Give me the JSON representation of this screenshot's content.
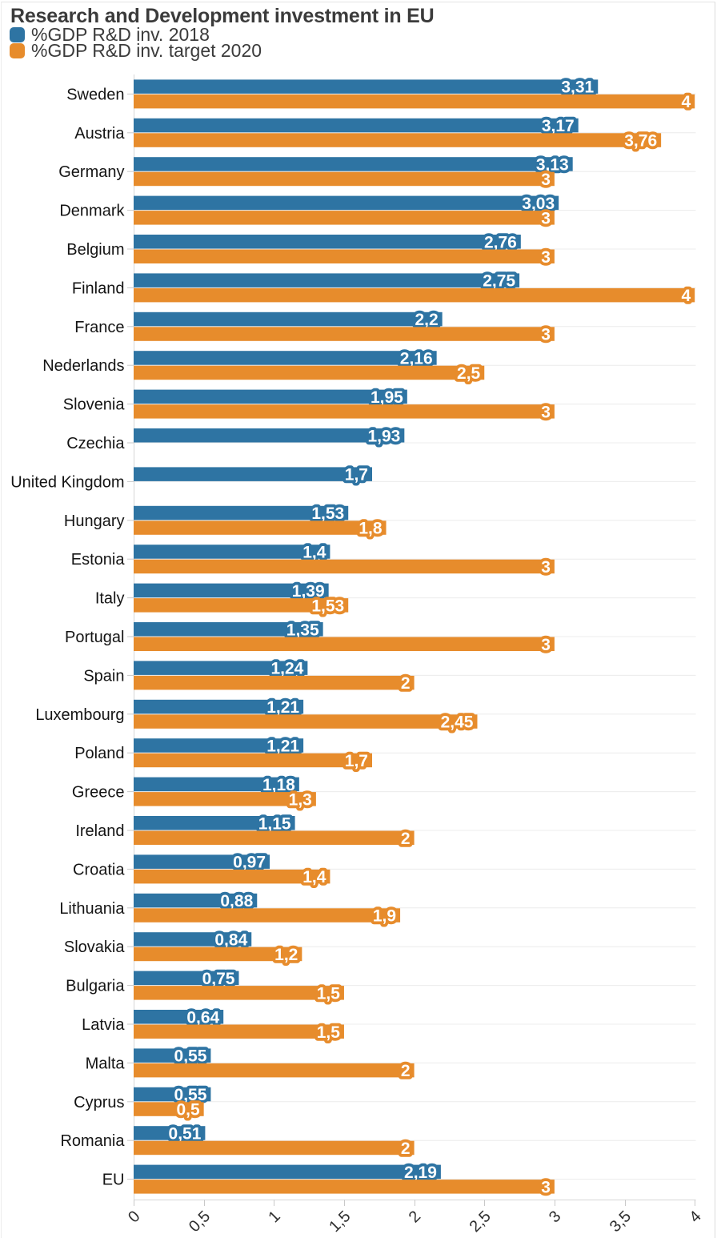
{
  "chart_data": {
    "type": "bar",
    "orientation": "horizontal",
    "title": "Research and Development investment in EU",
    "categories": [
      "Sweden",
      "Austria",
      "Germany",
      "Denmark",
      "Belgium",
      "Finland",
      "France",
      "Nederlands",
      "Slovenia",
      "Czechia",
      "United Kingdom",
      "Hungary",
      "Estonia",
      "Italy",
      "Portugal",
      "Spain",
      "Luxembourg",
      "Poland",
      "Greece",
      "Ireland",
      "Croatia",
      "Lithuania",
      "Slovakia",
      "Bulgaria",
      "Latvia",
      "Malta",
      "Cyprus",
      "Romania",
      "EU"
    ],
    "series": [
      {
        "name": "%GDP R&D inv. 2018",
        "key": "2018",
        "color": "#2e74a3",
        "values": [
          3.31,
          3.17,
          3.13,
          3.03,
          2.76,
          2.75,
          2.2,
          2.16,
          1.95,
          1.93,
          1.7,
          1.53,
          1.4,
          1.39,
          1.35,
          1.24,
          1.21,
          1.21,
          1.18,
          1.15,
          0.97,
          0.88,
          0.84,
          0.75,
          0.64,
          0.55,
          0.55,
          0.51,
          2.19
        ],
        "labels": [
          "3,31",
          "3,17",
          "3,13",
          "3,03",
          "2,76",
          "2,75",
          "2,2",
          "2,16",
          "1,95",
          "1,93",
          "1,7",
          "1,53",
          "1,4",
          "1,39",
          "1,35",
          "1,24",
          "1,21",
          "1,21",
          "1,18",
          "1,15",
          "0,97",
          "0,88",
          "0,84",
          "0,75",
          "0,64",
          "0,55",
          "0,55",
          "0,51",
          "2,19"
        ]
      },
      {
        "name": "%GDP R&D inv. target 2020",
        "key": "target-2020",
        "color": "#e78c2c",
        "values": [
          4,
          3.76,
          3,
          3,
          3,
          4,
          3,
          2.5,
          3,
          null,
          null,
          1.8,
          3,
          1.53,
          3,
          2,
          2.45,
          1.7,
          1.3,
          2,
          1.4,
          1.9,
          1.2,
          1.5,
          1.5,
          2,
          0.5,
          2,
          3
        ],
        "labels": [
          "4",
          "3,76",
          "3",
          "3",
          "3",
          "4",
          "3",
          "2,5",
          "3",
          null,
          null,
          "1,8",
          "3",
          "1,53",
          "3",
          "2",
          "2,45",
          "1,7",
          "1,3",
          "2",
          "1,4",
          "1,9",
          "1,2",
          "1,5",
          "1,5",
          "2",
          "0,5",
          "2",
          "3"
        ]
      }
    ],
    "x_axis": {
      "min": 0,
      "max": 4,
      "tick_values": [
        0,
        0.5,
        1,
        1.5,
        2,
        2.5,
        3,
        3.5,
        4
      ],
      "tick_labels": [
        "0",
        "0,5",
        "1",
        "1,5",
        "2",
        "2,5",
        "3",
        "3,5",
        "4"
      ],
      "decimal_separator": "comma"
    },
    "legend_position": "top-left",
    "grid": "horizontal-category-lines",
    "style": {
      "grid_color": "#ececec",
      "axis_color": "#d6d6d6",
      "tick_color": "#c9c9c9",
      "title_color": "#3b3b3b",
      "category_label_color": "#141414",
      "tick_label_color": "#2e2e2e",
      "value_label_text_color": "#ffffff"
    }
  }
}
